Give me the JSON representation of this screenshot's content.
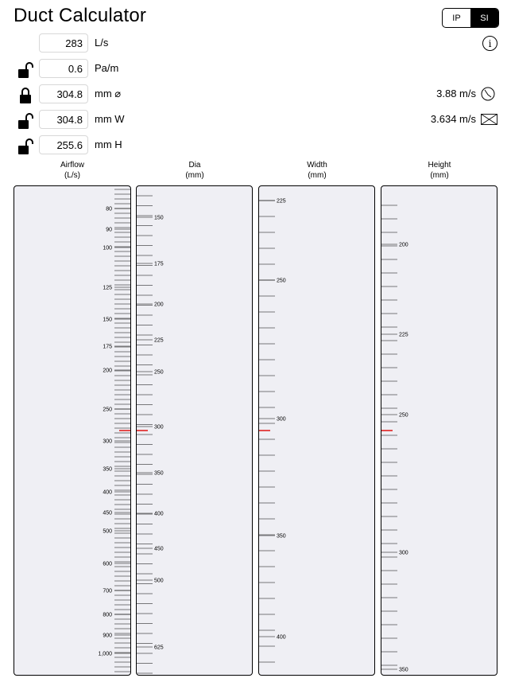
{
  "title": "Duct Calculator",
  "units_toggle": {
    "ip": "IP",
    "si": "SI",
    "selected": "SI"
  },
  "info_icon": "info-icon",
  "inputs": [
    {
      "value": "283",
      "unit": "L/s",
      "lock": "none"
    },
    {
      "value": "0.6",
      "unit": "Pa/m",
      "lock": "unlocked"
    },
    {
      "value": "304.8",
      "unit": "mm ⌀",
      "lock": "locked",
      "velocity": "3.88 m/s",
      "velocity_icon": "round-duct-icon"
    },
    {
      "value": "304.8",
      "unit": "mm W",
      "lock": "unlocked",
      "velocity": "3.634 m/s",
      "velocity_icon": "rect-duct-icon"
    },
    {
      "value": "255.6",
      "unit": "mm H",
      "lock": "unlocked"
    }
  ],
  "columns": [
    {
      "title": "Airflow",
      "unit": "(L/s)"
    },
    {
      "title": "Dia",
      "unit": "(mm)"
    },
    {
      "title": "Width",
      "unit": "(mm)"
    },
    {
      "title": "Height",
      "unit": "(mm)"
    }
  ],
  "scales": {
    "airflow": {
      "labels": [
        "80",
        "90",
        "100",
        "125",
        "150",
        "175",
        "200",
        "250",
        "300",
        "350",
        "400",
        "450",
        "500",
        "600",
        "700",
        "800",
        "900",
        "1,000"
      ],
      "current": "283"
    },
    "dia": {
      "labels": [
        "150",
        "175",
        "200",
        "225",
        "250",
        "300",
        "350",
        "400",
        "450",
        "500",
        "625"
      ],
      "current": "304.8"
    },
    "width": {
      "labels": [
        "225",
        "250",
        "300",
        "350",
        "400"
      ],
      "current": "304.8"
    },
    "height": {
      "labels": [
        "200",
        "225",
        "250",
        "300",
        "350"
      ],
      "current": "255.6"
    }
  },
  "colors": {
    "indicator": "#e02020",
    "scale_bg": "#efeff4"
  }
}
